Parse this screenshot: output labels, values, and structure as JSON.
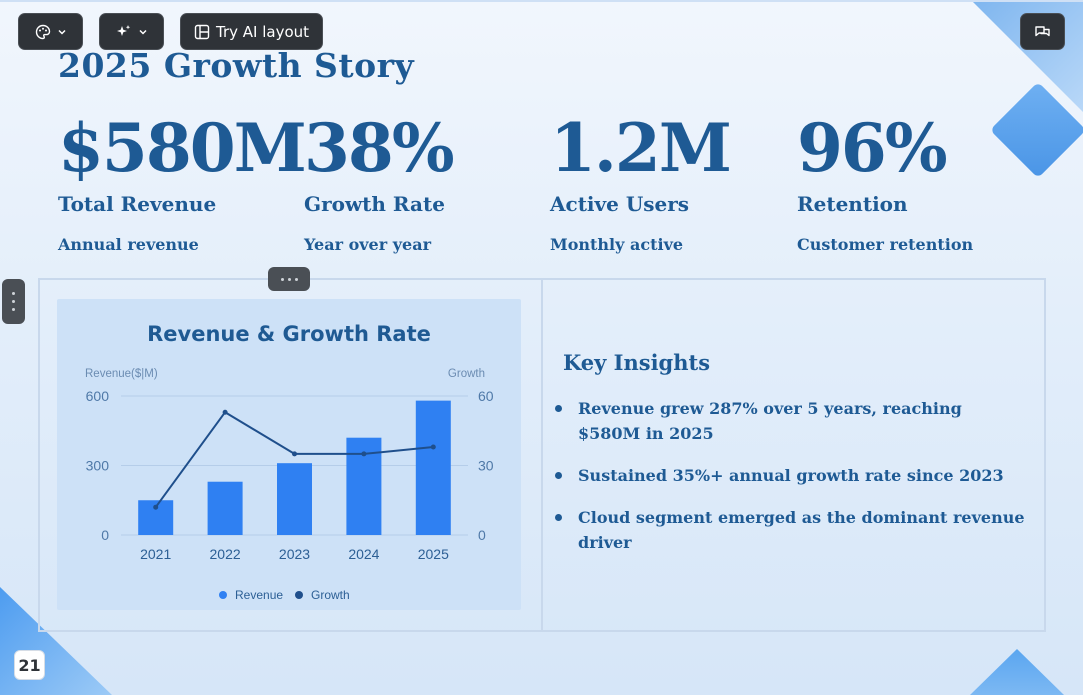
{
  "toolbar": {
    "theme_button_icon": "palette-icon",
    "ai_button_icon": "sparkles-icon",
    "try_ai_layout_label": "Try AI layout",
    "comments_button_icon": "chat-icon"
  },
  "slide": {
    "title": "2025 Growth Story",
    "page_number": "21",
    "metrics": [
      {
        "value": "$580M",
        "label": "Total Revenue",
        "sub": "Annual revenue"
      },
      {
        "value": "38%",
        "label": "Growth Rate",
        "sub": "Year over year"
      },
      {
        "value": "1.2M",
        "label": "Active Users",
        "sub": "Monthly active"
      },
      {
        "value": "96%",
        "label": "Retention",
        "sub": "Customer retention"
      }
    ],
    "insights": {
      "title": "Key Insights",
      "items": [
        "Revenue grew 287% over 5 years, reaching $580M in 2025",
        "Sustained 35%+ annual growth rate since 2023",
        "Cloud segment emerged as the dominant revenue driver"
      ]
    }
  },
  "colors": {
    "accent": "#1e5a94",
    "bar": "#2f80f2",
    "line": "#1f4f8c",
    "panel": "#cde1f7"
  },
  "chart_data": {
    "type": "bar",
    "title": "Revenue & Growth Rate",
    "categories": [
      "2021",
      "2022",
      "2023",
      "2024",
      "2025"
    ],
    "ylabel": "Revenue($|M)",
    "y2label": "Growth",
    "ylim": [
      0,
      600
    ],
    "y2lim": [
      0,
      60
    ],
    "yticks": [
      "600",
      "300",
      "0"
    ],
    "y2ticks": [
      "60",
      "30",
      "0"
    ],
    "grid": true,
    "legend": "bottom",
    "series": [
      {
        "name": "Revenue",
        "type": "bar",
        "axis": "left",
        "values": [
          150,
          230,
          310,
          420,
          580
        ]
      },
      {
        "name": "Growth",
        "type": "line",
        "axis": "right",
        "values": [
          12,
          53,
          35,
          35,
          38
        ]
      }
    ]
  }
}
